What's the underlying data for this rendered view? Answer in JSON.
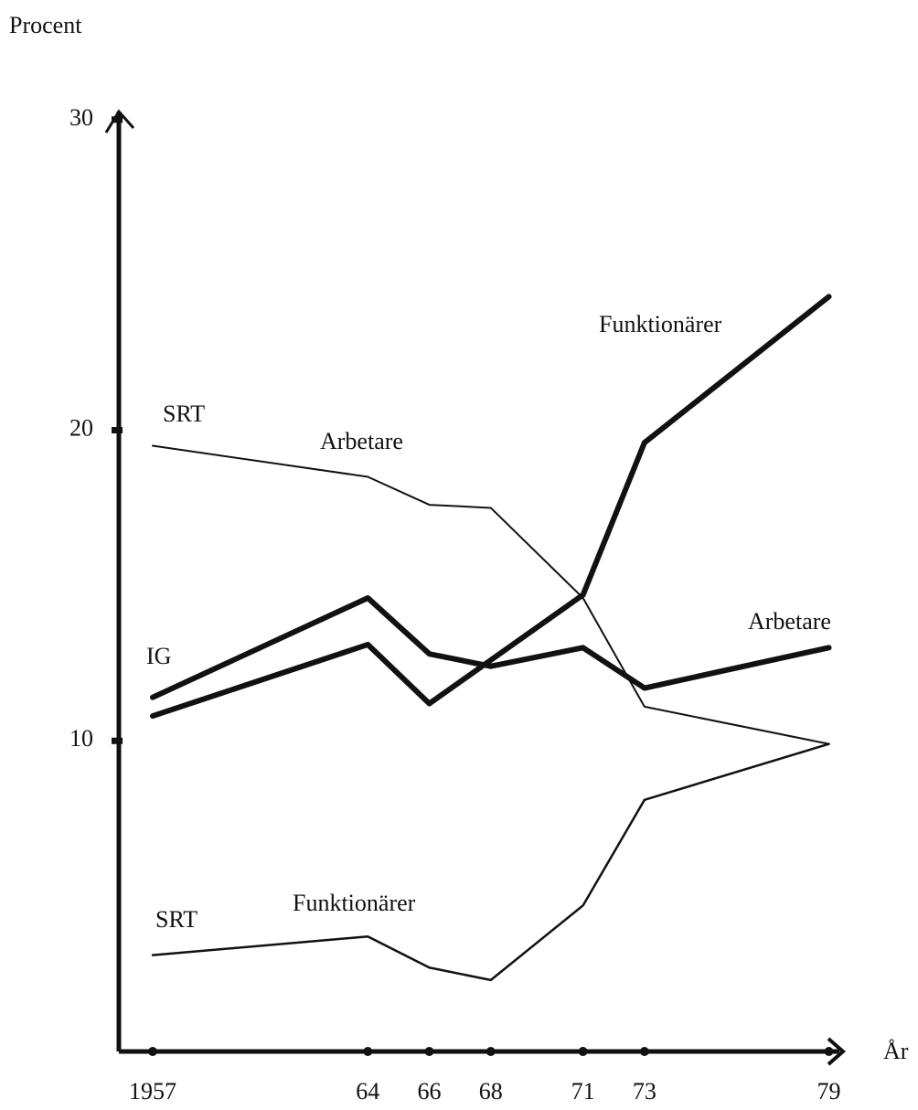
{
  "chart_data": {
    "type": "line",
    "y_label": "Procent",
    "x_label": "År",
    "xlim": [
      1955.9,
      1979.4
    ],
    "xticks": [
      {
        "value": 1957,
        "label": "1957"
      },
      {
        "value": 1964,
        "label": "64"
      },
      {
        "value": 1966,
        "label": "66"
      },
      {
        "value": 1968,
        "label": "68"
      },
      {
        "value": 1971,
        "label": "71"
      },
      {
        "value": 1973,
        "label": "73"
      },
      {
        "value": 1979,
        "label": "79"
      }
    ],
    "ylim": [
      0,
      30.2
    ],
    "yticks": [
      10,
      20,
      30
    ],
    "grid": false,
    "x": [
      1957,
      1964,
      1966,
      1968,
      1971,
      1973,
      1979
    ],
    "series": [
      {
        "name": "Arbetare",
        "color": "#111111",
        "line_width": 2,
        "values": [
          19.5,
          18.5,
          17.6,
          17.5,
          14.6,
          11.1,
          9.9
        ]
      },
      {
        "name": "Funktionärer",
        "color": "#111111",
        "line_width": 2.5,
        "values": [
          3.1,
          3.7,
          2.7,
          2.3,
          4.7,
          8.1,
          9.9
        ]
      },
      {
        "name": "Funktionärer",
        "color": "#111111",
        "line_width": 6,
        "values": [
          10.8,
          13.1,
          11.2,
          12.6,
          14.7,
          19.6,
          24.3
        ]
      },
      {
        "name": "Arbetare",
        "color": "#111111",
        "line_width": 6,
        "values": [
          11.4,
          14.6,
          12.8,
          12.4,
          13.0,
          11.7,
          13.0
        ]
      }
    ],
    "annotations": [
      "SRT",
      "SRT",
      "IG"
    ]
  }
}
